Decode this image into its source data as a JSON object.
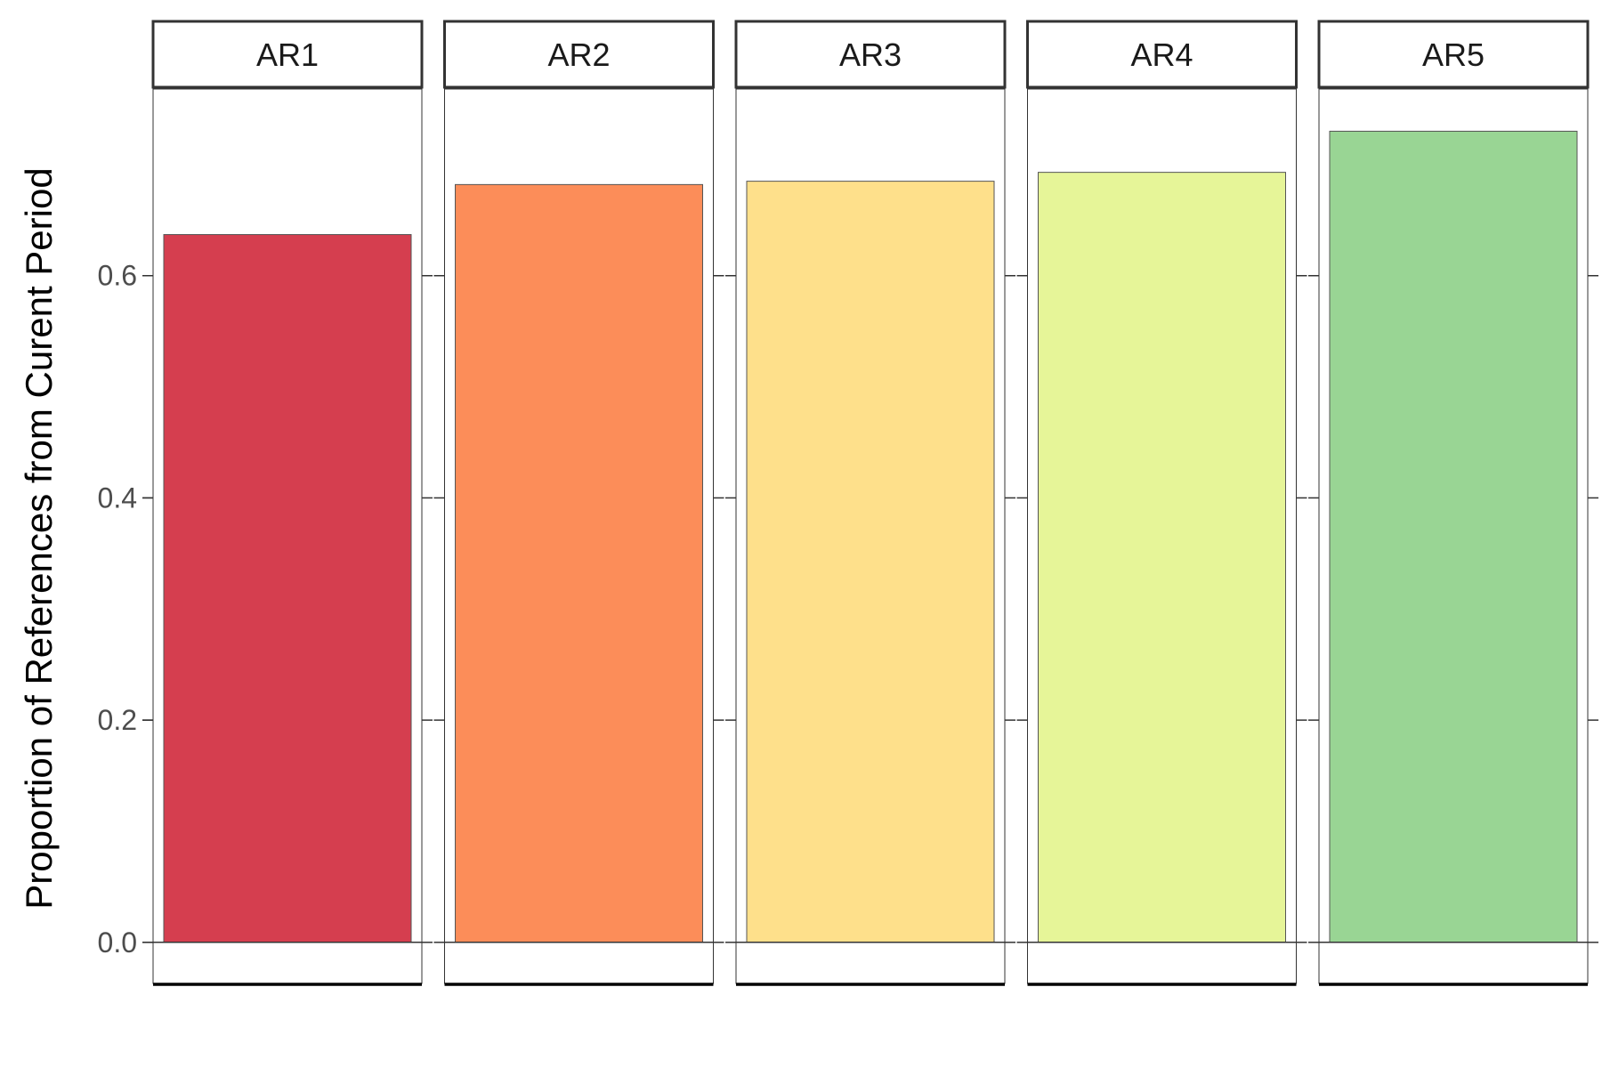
{
  "chart_data": {
    "type": "bar",
    "facets": [
      "AR1",
      "AR2",
      "AR3",
      "AR4",
      "AR5"
    ],
    "values": [
      0.637,
      0.682,
      0.685,
      0.693,
      0.73
    ],
    "colors": [
      "#D53E4F",
      "#FC8D59",
      "#FEE08B",
      "#E6F598",
      "#99D594"
    ],
    "ylabel": "Proportion of References from Curent Period",
    "xlabel": "",
    "ylim": [
      -0.037,
      0.768
    ],
    "yticks": [
      0.0,
      0.2,
      0.4,
      0.6
    ],
    "ytick_labels": [
      "0.0",
      "0.2",
      "0.4",
      "0.6"
    ],
    "grid": false,
    "legend": "none"
  }
}
